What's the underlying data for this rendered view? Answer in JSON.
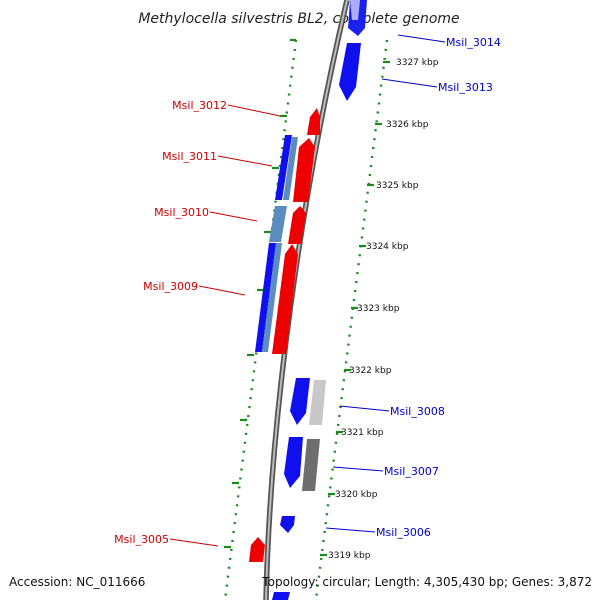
{
  "title": "Methylocella silvestris BL2, complete genome",
  "accession": "Accession: NC_011666",
  "topology": "Topology: circular; Length: 4,305,430 bp; Genes: 3,872",
  "colors": {
    "forward": "#0000ee",
    "reverse": "#ee0000",
    "forward_label": "#0000cc",
    "reverse_label": "#cc0000",
    "ruler_dots": "#1a8a1a",
    "backbone": "#888888",
    "cds_light_blue": "#5b8cc0",
    "pseudo_light": "#c8c8c8",
    "pseudo_dark": "#777777"
  },
  "kbp_ticks": [
    "3327 kbp",
    "3326 kbp",
    "3325 kbp",
    "3324 kbp",
    "3323 kbp",
    "3322 kbp",
    "3321 kbp",
    "3320 kbp",
    "3319 kbp"
  ],
  "genes": [
    {
      "id": "Msil_3014",
      "strand": "forward"
    },
    {
      "id": "Msil_3013",
      "strand": "forward"
    },
    {
      "id": "Msil_3012",
      "strand": "reverse"
    },
    {
      "id": "Msil_3011",
      "strand": "reverse"
    },
    {
      "id": "Msil_3010",
      "strand": "reverse"
    },
    {
      "id": "Msil_3009",
      "strand": "reverse"
    },
    {
      "id": "Msil_3008",
      "strand": "forward"
    },
    {
      "id": "Msil_3007",
      "strand": "forward"
    },
    {
      "id": "Msil_3006",
      "strand": "forward"
    },
    {
      "id": "Msil_3005",
      "strand": "reverse"
    }
  ]
}
